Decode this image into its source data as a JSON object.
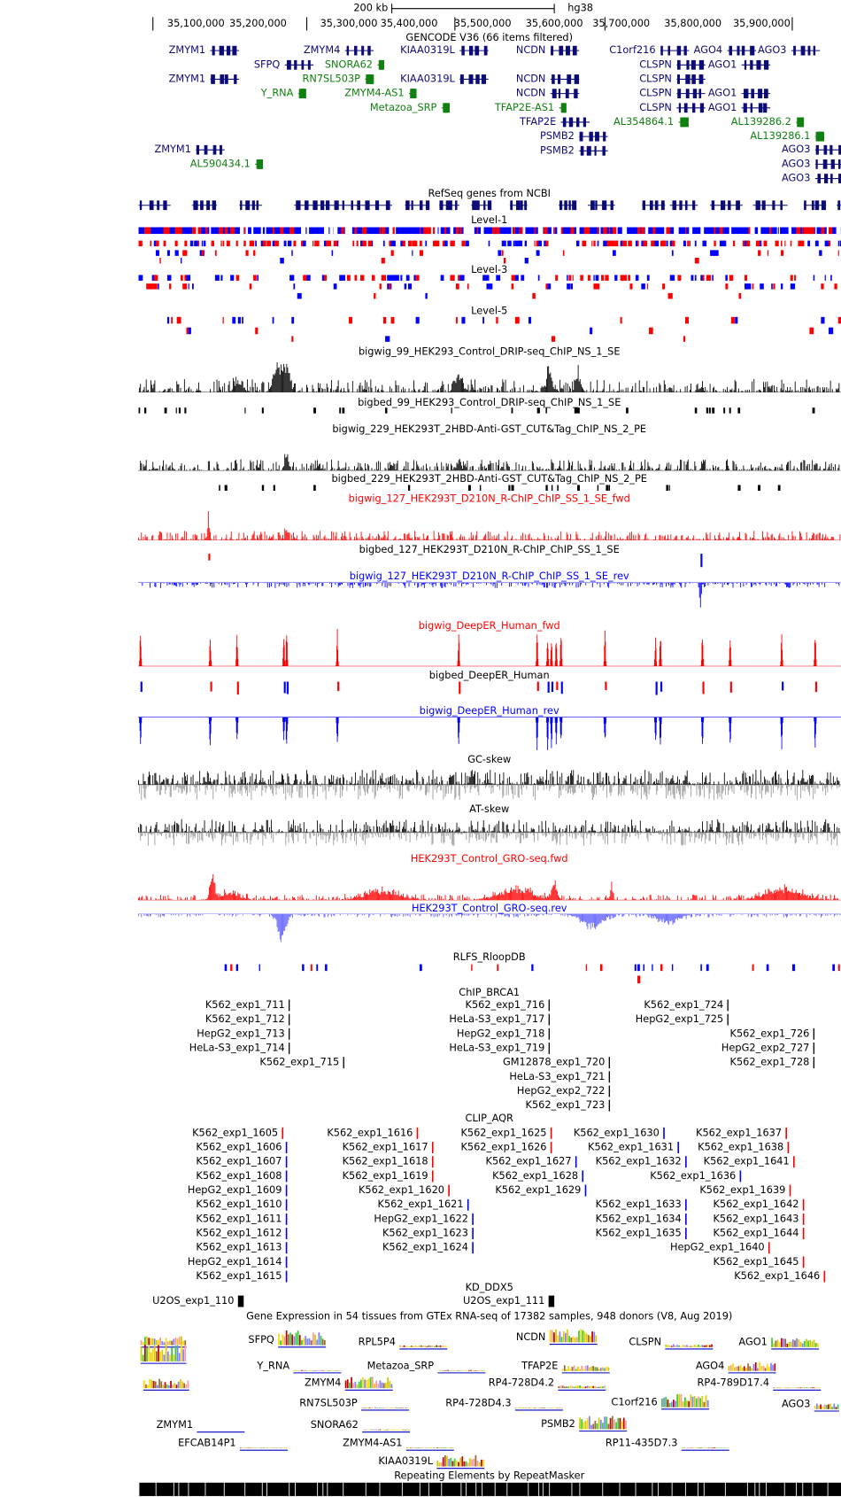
{
  "header": {
    "scale": "200 kb",
    "assembly": "hg38",
    "ruler": [
      "35,100,000",
      "35,200,000",
      "35,300,000",
      "35,400,000",
      "35,500,000",
      "35,600,000",
      "35,700,000",
      "35,800,000",
      "35,900,000"
    ]
  },
  "tracks": [
    {
      "title": "GENCODE V36 (66 items filtered)",
      "color": "#000000"
    },
    {
      "title": "RefSeq genes from NCBI",
      "color": "#000000"
    },
    {
      "title": "Level-1",
      "color": "#000000"
    },
    {
      "title": "Level-3",
      "color": "#000000"
    },
    {
      "title": "Level-5",
      "color": "#000000"
    },
    {
      "title": "bigwig_99_HEK293_Control_DRIP-seq_ChIP_NS_1_SE",
      "color": "#000000"
    },
    {
      "title": "bigbed_99_HEK293_Control_DRIP-seq_ChIP_NS_1_SE",
      "color": "#000000"
    },
    {
      "title": "bigwig_229_HEK293T_2HBD-Anti-GST_CUT&Tag_ChIP_NS_2_PE",
      "color": "#000000"
    },
    {
      "title": "bigbed_229_HEK293T_2HBD-Anti-GST_CUT&Tag_ChIP_NS_2_PE",
      "color": "#000000"
    },
    {
      "title": "bigwig_127_HEK293T_D210N_R-ChIP_ChIP_SS_1_SE_fwd",
      "color": "#ff0000"
    },
    {
      "title": "bigbed_127_HEK293T_D210N_R-ChIP_ChIP_SS_1_SE",
      "color": "#000000"
    },
    {
      "title": "bigwig_127_HEK293T_D210N_R-ChIP_ChIP_SS_1_SE_rev",
      "color": "#0000ff"
    },
    {
      "title": "bigwig_DeepER_Human_fwd",
      "color": "#ff0000"
    },
    {
      "title": "bigbed_DeepER_Human",
      "color": "#000000"
    },
    {
      "title": "bigwig_DeepER_Human_rev",
      "color": "#0000ff"
    },
    {
      "title": "GC-skew",
      "color": "#000000"
    },
    {
      "title": "AT-skew",
      "color": "#000000"
    },
    {
      "title": "HEK293T_Control_GRO-seq.fwd",
      "color": "#ff0000"
    },
    {
      "title": "HEK293T_Control_GRO-seq.rev",
      "color": "#0000ff"
    },
    {
      "title": "RLFS_RloopDB",
      "color": "#000000"
    },
    {
      "title": "ChIP_BRCA1",
      "color": "#000000"
    },
    {
      "title": "CLIP_AQR",
      "color": "#000000"
    },
    {
      "title": "KD_DDX5",
      "color": "#000000"
    },
    {
      "title": "Gene Expression in 54 tissues from GTEx RNA-seq of 17382 samples, 948 donors (V8, Aug 2019)",
      "color": "#000000"
    },
    {
      "title": "Repeating Elements by RepeatMasker",
      "color": "#000000"
    }
  ],
  "gencode_genes": [
    {
      "label": "ZMYM1",
      "color": "#0c0c78"
    },
    {
      "label": "SFPQ",
      "color": "#0c0c78"
    },
    {
      "label": "ZMYM1",
      "color": "#0c0c78"
    },
    {
      "label": "Y_RNA",
      "color": "#108010"
    },
    {
      "label": "ZMYM1",
      "color": "#0c0c78"
    },
    {
      "label": "AL590434.1",
      "color": "#108010"
    },
    {
      "label": "ZMYM4",
      "color": "#0c0c78"
    },
    {
      "label": "SNORA62",
      "color": "#108010"
    },
    {
      "label": "RN7SL503P",
      "color": "#108010"
    },
    {
      "label": "ZMYM4-AS1",
      "color": "#108010"
    },
    {
      "label": "Metazoa_SRP",
      "color": "#108010"
    },
    {
      "label": "KIAA0319L",
      "color": "#0c0c78"
    },
    {
      "label": "KIAA0319L",
      "color": "#0c0c78"
    },
    {
      "label": "NCDN",
      "color": "#0c0c78"
    },
    {
      "label": "NCDN",
      "color": "#0c0c78"
    },
    {
      "label": "NCDN",
      "color": "#0c0c78"
    },
    {
      "label": "TFAP2E-AS1",
      "color": "#108010"
    },
    {
      "label": "TFAP2E",
      "color": "#0c0c78"
    },
    {
      "label": "PSMB2",
      "color": "#0c0c78"
    },
    {
      "label": "PSMB2",
      "color": "#0c0c78"
    },
    {
      "label": "C1orf216",
      "color": "#0c0c78"
    },
    {
      "label": "CLSPN",
      "color": "#0c0c78"
    },
    {
      "label": "CLSPN",
      "color": "#0c0c78"
    },
    {
      "label": "CLSPN",
      "color": "#0c0c78"
    },
    {
      "label": "CLSPN",
      "color": "#0c0c78"
    },
    {
      "label": "AL354864.1",
      "color": "#108010"
    },
    {
      "label": "AGO4",
      "color": "#0c0c78"
    },
    {
      "label": "AGO1",
      "color": "#0c0c78"
    },
    {
      "label": "AGO1",
      "color": "#0c0c78"
    },
    {
      "label": "AGO1",
      "color": "#0c0c78"
    },
    {
      "label": "AL139286.2",
      "color": "#108010"
    },
    {
      "label": "AL139286.1",
      "color": "#108010"
    },
    {
      "label": "AGO3",
      "color": "#0c0c78"
    },
    {
      "label": "AGO3",
      "color": "#0c0c78"
    },
    {
      "label": "AGO3",
      "color": "#0c0c78"
    },
    {
      "label": "AGO3",
      "color": "#0c0c78"
    }
  ],
  "chip_brca1": [
    "K562_exp1_711",
    "K562_exp1_712",
    "HepG2_exp1_713",
    "HeLa-S3_exp1_714",
    "K562_exp1_715",
    "K562_exp1_716",
    "HeLa-S3_exp1_717",
    "HepG2_exp1_718",
    "HeLa-S3_exp1_719",
    "GM12878_exp1_720",
    "HeLa-S3_exp1_721",
    "HepG2_exp2_722",
    "K562_exp1_723",
    "K562_exp1_724",
    "HepG2_exp1_725",
    "K562_exp1_726",
    "HepG2_exp2_727",
    "K562_exp1_728"
  ],
  "clip_aqr": [
    {
      "label": "K562_exp1_1605",
      "color": "#ff0000"
    },
    {
      "label": "K562_exp1_1606",
      "color": "#0000ff"
    },
    {
      "label": "K562_exp1_1607",
      "color": "#0000ff"
    },
    {
      "label": "K562_exp1_1608",
      "color": "#0000ff"
    },
    {
      "label": "HepG2_exp1_1609",
      "color": "#0000ff"
    },
    {
      "label": "K562_exp1_1610",
      "color": "#0000ff"
    },
    {
      "label": "K562_exp1_1611",
      "color": "#0000ff"
    },
    {
      "label": "K562_exp1_1612",
      "color": "#0000ff"
    },
    {
      "label": "K562_exp1_1613",
      "color": "#0000ff"
    },
    {
      "label": "HepG2_exp1_1614",
      "color": "#0000ff"
    },
    {
      "label": "K562_exp1_1615",
      "color": "#0000ff"
    },
    {
      "label": "K562_exp1_1616",
      "color": "#ff0000"
    },
    {
      "label": "K562_exp1_1617",
      "color": "#ff0000"
    },
    {
      "label": "K562_exp1_1618",
      "color": "#ff0000"
    },
    {
      "label": "K562_exp1_1619",
      "color": "#ff0000"
    },
    {
      "label": "K562_exp1_1620",
      "color": "#ff0000"
    },
    {
      "label": "K562_exp1_1621",
      "color": "#0000ff"
    },
    {
      "label": "HepG2_exp1_1622",
      "color": "#0000ff"
    },
    {
      "label": "K562_exp1_1623",
      "color": "#0000ff"
    },
    {
      "label": "K562_exp1_1624",
      "color": "#0000ff"
    },
    {
      "label": "K562_exp1_1625",
      "color": "#ff0000"
    },
    {
      "label": "K562_exp1_1626",
      "color": "#ff0000"
    },
    {
      "label": "K562_exp1_1627",
      "color": "#0000ff"
    },
    {
      "label": "K562_exp1_1628",
      "color": "#0000ff"
    },
    {
      "label": "K562_exp1_1629",
      "color": "#0000ff"
    },
    {
      "label": "K562_exp1_1630",
      "color": "#0000ff"
    },
    {
      "label": "K562_exp1_1631",
      "color": "#0000ff"
    },
    {
      "label": "K562_exp1_1632",
      "color": "#0000ff"
    },
    {
      "label": "K562_exp1_1633",
      "color": "#0000ff"
    },
    {
      "label": "K562_exp1_1634",
      "color": "#0000ff"
    },
    {
      "label": "K562_exp1_1635",
      "color": "#0000ff"
    },
    {
      "label": "K562_exp1_1637",
      "color": "#ff0000"
    },
    {
      "label": "K562_exp1_1638",
      "color": "#ff0000"
    },
    {
      "label": "K562_exp1_1641",
      "color": "#ff0000"
    },
    {
      "label": "K562_exp1_1636",
      "color": "#0000ff"
    },
    {
      "label": "K562_exp1_1639",
      "color": "#ff0000"
    },
    {
      "label": "K562_exp1_1642",
      "color": "#ff0000"
    },
    {
      "label": "K562_exp1_1643",
      "color": "#ff0000"
    },
    {
      "label": "K562_exp1_1644",
      "color": "#ff0000"
    },
    {
      "label": "HepG2_exp1_1640",
      "color": "#ff0000"
    },
    {
      "label": "K562_exp1_1645",
      "color": "#ff0000"
    },
    {
      "label": "K562_exp1_1646",
      "color": "#ff0000"
    }
  ],
  "kd_ddx5": [
    "U2OS_exp1_110",
    "U2OS_exp1_111"
  ],
  "gtex_genes": [
    "SFPQ",
    "RPL5P4",
    "NCDN",
    "CLSPN",
    "AGO1",
    "Y_RNA",
    "Metazoa_SRP",
    "TFAP2E",
    "AGO4",
    "ZMYM4",
    "RP4-728D4.2",
    "RP4-789D17.4",
    "RN7SL503P",
    "RP4-728D4.3",
    "C1orf216",
    "AGO3",
    "ZMYM1",
    "SNORA62",
    "PSMB2",
    "EFCAB14P1",
    "ZMYM4-AS1",
    "RP11-435D7.3",
    "KIAA0319L"
  ]
}
